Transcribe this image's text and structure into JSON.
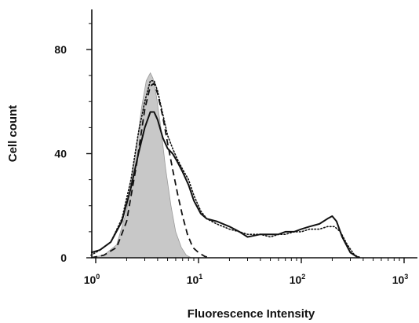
{
  "chart_data": {
    "type": "area",
    "xlabel": "Fluorescence Intensity",
    "ylabel": "Cell count",
    "xscale": "log",
    "xlim": [
      0.85,
      1400
    ],
    "ylim": [
      0,
      100
    ],
    "x_ticks": [
      {
        "base": "10",
        "exp": "0",
        "value": 1
      },
      {
        "base": "10",
        "exp": "1",
        "value": 10
      },
      {
        "base": "10",
        "exp": "2",
        "value": 100
      },
      {
        "base": "10",
        "exp": "3",
        "value": 1000
      }
    ],
    "y_ticks": [
      0,
      40,
      80
    ],
    "series": [
      {
        "style": "shaded",
        "x": [
          0.9,
          1.2,
          1.6,
          2.0,
          2.4,
          2.8,
          3.1,
          3.4,
          3.6,
          3.9,
          4.3,
          4.8,
          5.4,
          6.0,
          6.8,
          7.6,
          8.5
        ],
        "values": [
          0,
          1,
          5,
          18,
          38,
          58,
          68,
          71,
          69,
          62,
          50,
          34,
          20,
          10,
          4,
          1,
          0
        ]
      },
      {
        "style": "dashed",
        "x": [
          0.9,
          1.2,
          1.6,
          2.0,
          2.5,
          3.0,
          3.4,
          3.7,
          4.0,
          4.5,
          5.0,
          5.6,
          6.3,
          7.0,
          7.8,
          8.8,
          10.0,
          11.5,
          13.0
        ],
        "values": [
          0,
          1,
          4,
          14,
          36,
          57,
          66,
          67,
          63,
          54,
          44,
          34,
          24,
          16,
          9,
          4,
          2,
          0.5,
          0
        ]
      },
      {
        "style": "dotted",
        "x": [
          0.9,
          1.1,
          1.4,
          1.8,
          2.2,
          2.6,
          3.0,
          3.4,
          3.7,
          4.0,
          4.5,
          5.0,
          5.6,
          6.2,
          7.0,
          8.0,
          9.0,
          10.5,
          12,
          15,
          20,
          25,
          30,
          40,
          50,
          60,
          70,
          85,
          100,
          120,
          150,
          180,
          210,
          240,
          280,
          330,
          380
        ],
        "values": [
          1,
          3,
          6,
          15,
          30,
          48,
          60,
          68,
          68,
          64,
          55,
          47,
          42,
          38,
          34,
          30,
          24,
          18,
          15,
          13,
          11,
          10,
          9,
          9,
          8,
          9,
          9,
          10,
          10,
          11,
          11,
          12,
          12,
          10,
          5,
          1,
          0
        ]
      },
      {
        "style": "solid",
        "x": [
          0.9,
          1.1,
          1.4,
          1.8,
          2.2,
          2.6,
          3.0,
          3.4,
          3.7,
          4.0,
          4.5,
          5.0,
          5.6,
          6.2,
          7.0,
          8.0,
          9.0,
          10.5,
          12,
          15,
          20,
          25,
          30,
          40,
          50,
          60,
          70,
          85,
          100,
          120,
          150,
          180,
          200,
          220,
          250,
          300,
          360
        ],
        "values": [
          2,
          3,
          6,
          14,
          27,
          40,
          50,
          56,
          56,
          53,
          46,
          42,
          40,
          37,
          33,
          28,
          22,
          17,
          15,
          14,
          12,
          10,
          8,
          9,
          9,
          9,
          10,
          10,
          11,
          12,
          13,
          15,
          16,
          14,
          8,
          2,
          0
        ]
      }
    ]
  }
}
